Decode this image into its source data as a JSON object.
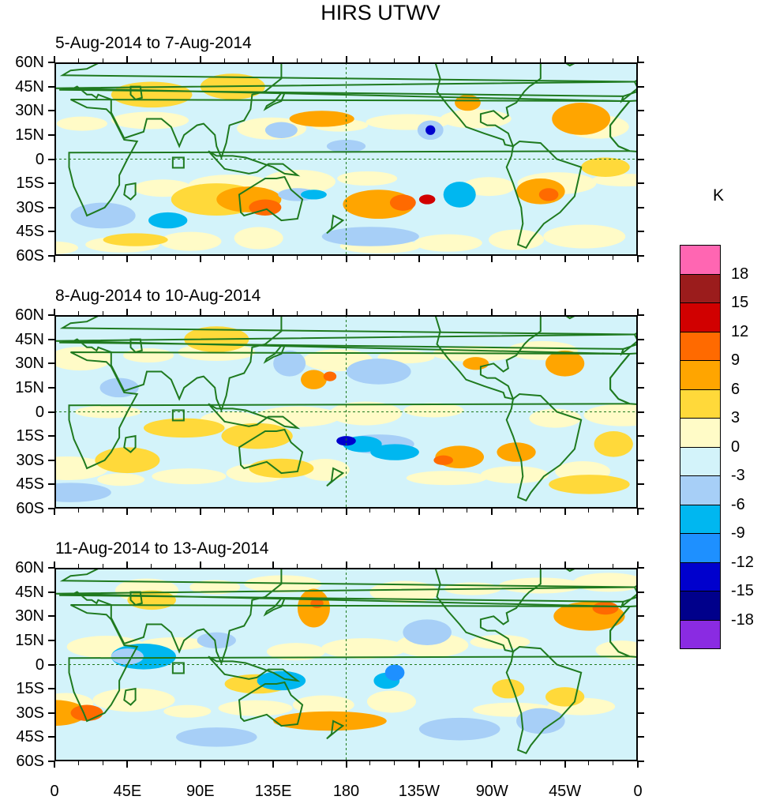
{
  "title": "HIRS UTWV",
  "panels": [
    {
      "subtitle": "5-Aug-2014 to 7-Aug-2014"
    },
    {
      "subtitle": "8-Aug-2014 to 10-Aug-2014"
    },
    {
      "subtitle": "11-Aug-2014 to 13-Aug-2014"
    }
  ],
  "y_ticks": [
    "60N",
    "45N",
    "30N",
    "15N",
    "0",
    "15S",
    "30S",
    "45S",
    "60S"
  ],
  "x_ticks": [
    "0",
    "45E",
    "90E",
    "135E",
    "180",
    "135W",
    "90W",
    "45W",
    "0"
  ],
  "colorbar": {
    "unit": "K",
    "labels": [
      "18",
      "15",
      "12",
      "9",
      "6",
      "3",
      "0",
      "-3",
      "-6",
      "-9",
      "-12",
      "-15",
      "-18"
    ],
    "colors": [
      "#ff66b2",
      "#9b1c1c",
      "#d10000",
      "#ff6a00",
      "#ffa500",
      "#ffd93a",
      "#fffbc7",
      "#d3f3fa",
      "#a7cff7",
      "#00b7f0",
      "#1e90ff",
      "#0000cd",
      "#00008b",
      "#8a2be2"
    ],
    "outline": "#000000"
  },
  "map_colors": {
    "coastline": "#1f7a1f",
    "reference_lines": "#1f7a1f"
  }
}
